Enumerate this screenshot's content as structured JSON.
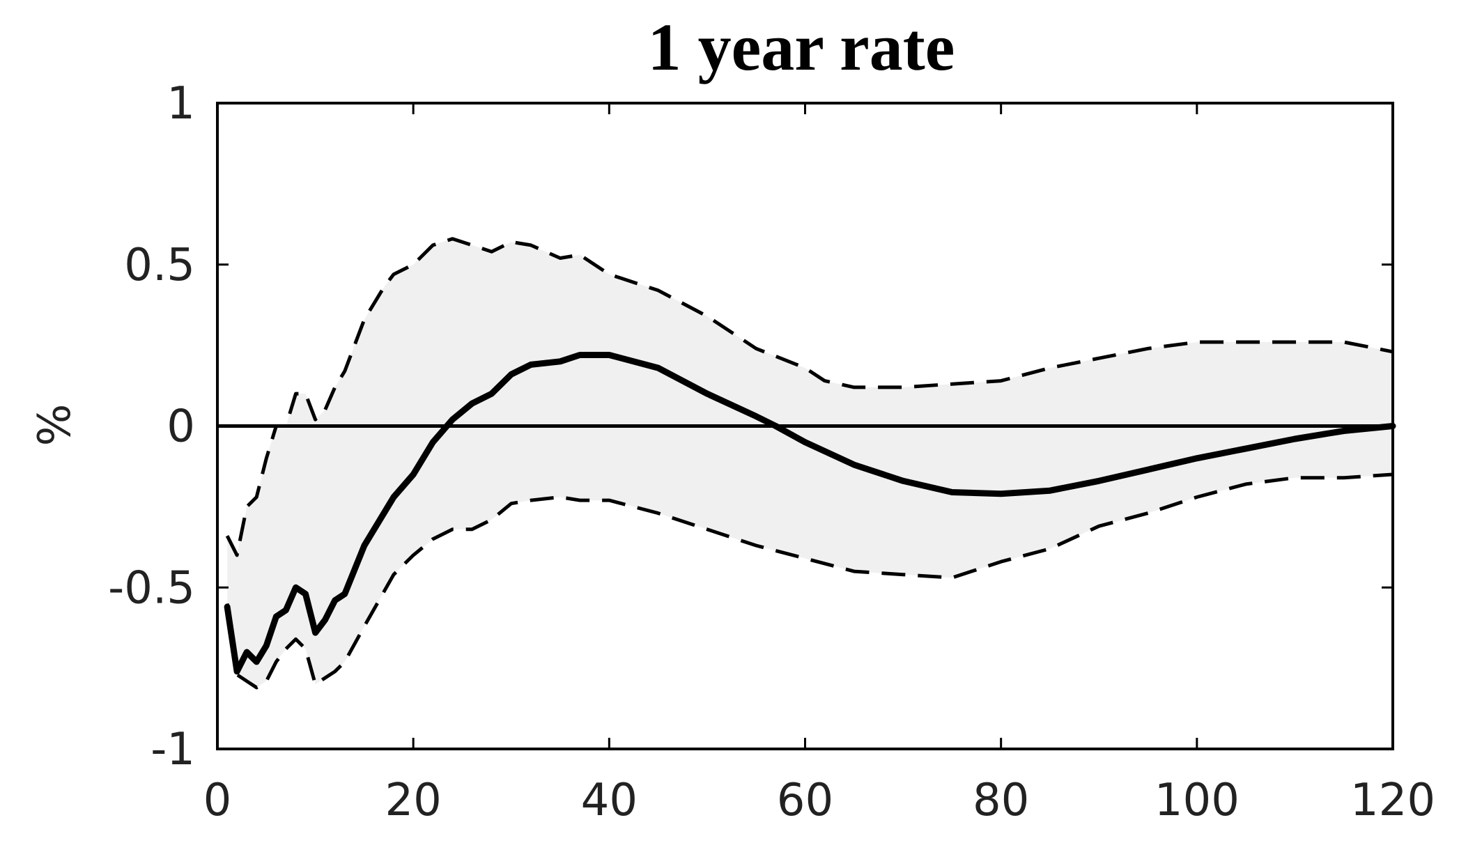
{
  "chart_data": {
    "type": "line",
    "title": "1 year rate",
    "xlabel": "",
    "ylabel": "%",
    "xlim": [
      0,
      120
    ],
    "ylim": [
      -1,
      1
    ],
    "xticks": [
      0,
      20,
      40,
      60,
      80,
      100,
      120
    ],
    "xtick_labels": [
      "0",
      "20",
      "40",
      "60",
      "80",
      "100",
      "120"
    ],
    "yticks": [
      -1,
      -0.5,
      0,
      0.5,
      1
    ],
    "ytick_labels": [
      "-1",
      "-0.5",
      "0",
      "0.5",
      "1"
    ],
    "grid": false,
    "legend": "none",
    "zero_line": 0,
    "colors": {
      "median": "#000000",
      "band_fill": "#f0f0f0",
      "band_edge": "#000000",
      "axes": "#000000"
    },
    "series": [
      {
        "role": "median",
        "style": "solid",
        "x": [
          1,
          2,
          3,
          4,
          5,
          6,
          7,
          8,
          9,
          10,
          11,
          12,
          13,
          15,
          18,
          20,
          22,
          24,
          26,
          28,
          30,
          32,
          35,
          37,
          40,
          45,
          50,
          55,
          57,
          60,
          65,
          70,
          75,
          80,
          85,
          90,
          95,
          100,
          105,
          110,
          115,
          120
        ],
        "values": [
          -0.56,
          -0.76,
          -0.7,
          -0.73,
          -0.68,
          -0.59,
          -0.57,
          -0.5,
          -0.52,
          -0.64,
          -0.6,
          -0.54,
          -0.52,
          -0.37,
          -0.22,
          -0.15,
          -0.05,
          0.02,
          0.07,
          0.1,
          0.16,
          0.19,
          0.2,
          0.22,
          0.22,
          0.18,
          0.1,
          0.03,
          0.0,
          -0.05,
          -0.12,
          -0.17,
          -0.205,
          -0.21,
          -0.2,
          -0.17,
          -0.135,
          -0.1,
          -0.07,
          -0.04,
          -0.015,
          0.0
        ]
      },
      {
        "role": "upper band",
        "style": "dashed",
        "x": [
          1,
          2,
          3,
          4,
          5,
          6,
          7,
          8,
          9,
          10,
          11,
          12,
          13,
          15,
          17,
          18,
          20,
          22,
          24,
          26,
          28,
          30,
          32,
          35,
          37,
          40,
          45,
          50,
          55,
          60,
          62,
          65,
          70,
          75,
          80,
          85,
          90,
          95,
          100,
          105,
          110,
          115,
          120
        ],
        "values": [
          -0.34,
          -0.4,
          -0.25,
          -0.22,
          -0.1,
          0.0,
          0.0,
          0.1,
          0.1,
          0.02,
          0.05,
          0.12,
          0.17,
          0.33,
          0.43,
          0.47,
          0.5,
          0.56,
          0.58,
          0.56,
          0.54,
          0.57,
          0.56,
          0.52,
          0.53,
          0.47,
          0.42,
          0.34,
          0.24,
          0.18,
          0.14,
          0.12,
          0.12,
          0.13,
          0.14,
          0.18,
          0.21,
          0.24,
          0.26,
          0.26,
          0.26,
          0.26,
          0.23
        ]
      },
      {
        "role": "lower band",
        "style": "dashed",
        "x": [
          1,
          2,
          3,
          4,
          5,
          6,
          7,
          8,
          9,
          10,
          11,
          12,
          13,
          15,
          18,
          20,
          22,
          24,
          26,
          28,
          30,
          32,
          35,
          37,
          40,
          45,
          50,
          55,
          60,
          65,
          70,
          75,
          80,
          85,
          90,
          95,
          100,
          105,
          110,
          115,
          120
        ],
        "values": [
          -0.55,
          -0.77,
          -0.79,
          -0.81,
          -0.79,
          -0.73,
          -0.69,
          -0.66,
          -0.69,
          -0.8,
          -0.78,
          -0.76,
          -0.73,
          -0.62,
          -0.46,
          -0.4,
          -0.35,
          -0.32,
          -0.32,
          -0.29,
          -0.24,
          -0.23,
          -0.22,
          -0.23,
          -0.23,
          -0.27,
          -0.32,
          -0.37,
          -0.41,
          -0.45,
          -0.46,
          -0.47,
          -0.42,
          -0.38,
          -0.31,
          -0.27,
          -0.22,
          -0.18,
          -0.16,
          -0.16,
          -0.15
        ]
      }
    ]
  }
}
